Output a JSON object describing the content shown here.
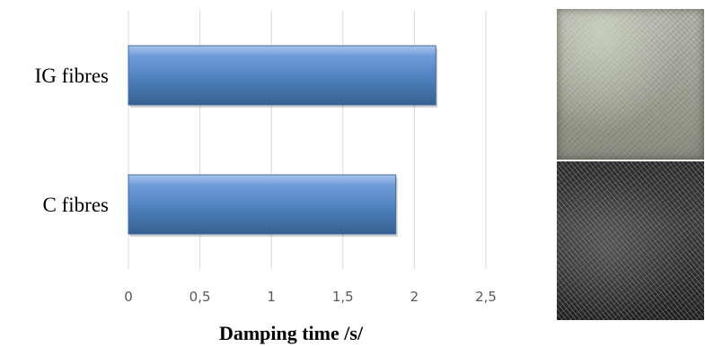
{
  "chart_data": {
    "type": "bar",
    "orientation": "horizontal",
    "categories": [
      "IG fibres",
      "C fibres"
    ],
    "values": [
      2.15,
      1.87
    ],
    "title": "",
    "xlabel": "Damping time /s/",
    "ylabel": "",
    "xlim": [
      0,
      2.5
    ],
    "xticks": [
      0,
      0.5,
      1,
      1.5,
      2,
      2.5
    ],
    "xtick_labels": [
      "0",
      "0,5",
      "1",
      "1,5",
      "2",
      "2,5"
    ],
    "grid": "vertical",
    "legend": "none",
    "bar_color": "#4f81bd"
  },
  "photos": {
    "ig_fibres": "ig-fibre-sample-photo",
    "c_fibres": "c-fibre-sample-photo"
  }
}
